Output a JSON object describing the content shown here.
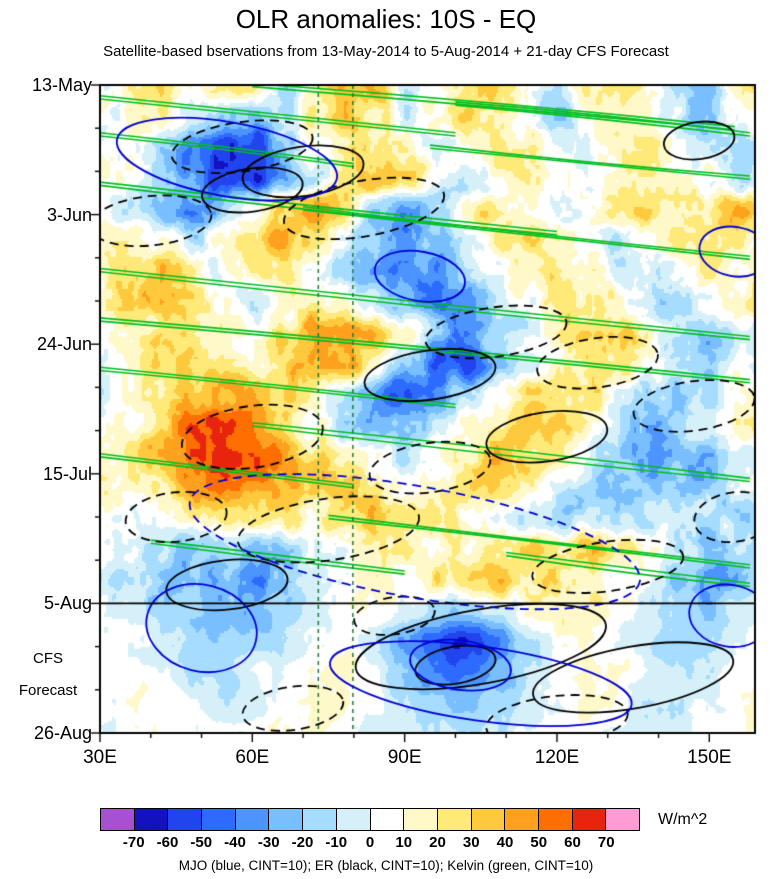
{
  "chart_data": {
    "type": "heatmap",
    "title": "OLR anomalies: 10S - EQ",
    "subtitle": "Satellite-based bservations from 13-May-2014 to 5-Aug-2014 + 21-day CFS Forecast",
    "units": "W/m^2",
    "legend": "MJO (blue, CINT=10); ER (black, CINT=10); Kelvin (green, CINT=10)",
    "x_axis": {
      "min": 30,
      "max": 159,
      "minor_step": 10,
      "ticks": [
        {
          "label": "30E",
          "lon": 30
        },
        {
          "label": "60E",
          "lon": 60
        },
        {
          "label": "90E",
          "lon": 90
        },
        {
          "label": "120E",
          "lon": 120
        },
        {
          "label": "150E",
          "lon": 150
        }
      ]
    },
    "y_axis": {
      "min_day": 0,
      "max_day": 105,
      "minor_step": 7,
      "ticks": [
        {
          "label": "13-May",
          "day": 0
        },
        {
          "label": "3-Jun",
          "day": 21
        },
        {
          "label": "24-Jun",
          "day": 42
        },
        {
          "label": "15-Jul",
          "day": 63
        },
        {
          "label": "5-Aug",
          "day": 84
        },
        {
          "label": "26-Aug",
          "day": 105
        }
      ]
    },
    "levels": [
      -70,
      -60,
      -50,
      -40,
      -30,
      -20,
      -10,
      0,
      10,
      20,
      30,
      40,
      50,
      60,
      70
    ],
    "colors": [
      "#A751D1",
      "#1212BE",
      "#2244EE",
      "#2D6BFF",
      "#4D94FF",
      "#79BFFF",
      "#A6DCFF",
      "#D6F0FA",
      "#FFFFFF",
      "#FFF8C9",
      "#FFE978",
      "#FFC93E",
      "#FFA01E",
      "#FF6E00",
      "#E8240F",
      "#FF9BD5"
    ],
    "colorbar_labels": [
      "-70",
      "-60",
      "-50",
      "-40",
      "-30",
      "-20",
      "-10",
      "0",
      "10",
      "20",
      "30",
      "40",
      "50",
      "60",
      "70"
    ],
    "grid": {
      "lons": [
        30,
        36,
        42,
        48,
        54,
        60,
        66,
        72,
        78,
        84,
        90,
        96,
        102,
        108,
        114,
        120,
        126,
        132,
        138,
        144,
        150,
        156
      ],
      "days": [
        0,
        5,
        10,
        15,
        20,
        25,
        30,
        35,
        40,
        45,
        50,
        55,
        60,
        65,
        70,
        75,
        80,
        85,
        90,
        95,
        100,
        105
      ],
      "values": [
        [
          10,
          15,
          25,
          5,
          30,
          35,
          -20,
          15,
          30,
          40,
          -15,
          10,
          25,
          30,
          10,
          -10,
          20,
          25,
          15,
          -5,
          -30,
          25
        ],
        [
          5,
          10,
          15,
          -10,
          -25,
          -30,
          -10,
          20,
          35,
          25,
          -5,
          15,
          30,
          20,
          5,
          -15,
          10,
          20,
          10,
          -10,
          -20,
          10
        ],
        [
          10,
          0,
          -15,
          -40,
          -60,
          -55,
          -25,
          5,
          25,
          30,
          10,
          -10,
          5,
          25,
          15,
          5,
          -5,
          15,
          25,
          10,
          -10,
          -15
        ],
        [
          15,
          10,
          -10,
          -35,
          -55,
          -60,
          -35,
          -10,
          20,
          35,
          30,
          5,
          -10,
          10,
          20,
          10,
          0,
          10,
          20,
          15,
          5,
          -10
        ],
        [
          5,
          -10,
          -20,
          -30,
          -20,
          10,
          35,
          45,
          25,
          -15,
          -30,
          -10,
          15,
          25,
          10,
          -5,
          5,
          20,
          30,
          20,
          25,
          35
        ],
        [
          10,
          20,
          10,
          -10,
          5,
          30,
          40,
          20,
          -5,
          -25,
          -35,
          -20,
          5,
          20,
          30,
          15,
          5,
          -10,
          5,
          25,
          30,
          20
        ],
        [
          15,
          25,
          30,
          15,
          0,
          15,
          25,
          5,
          -15,
          -30,
          -40,
          -35,
          -15,
          5,
          15,
          25,
          15,
          0,
          -10,
          10,
          20,
          10
        ],
        [
          20,
          30,
          35,
          25,
          10,
          -5,
          10,
          20,
          10,
          -10,
          -25,
          -40,
          -30,
          -10,
          10,
          20,
          25,
          10,
          -5,
          -15,
          5,
          15
        ],
        [
          10,
          15,
          20,
          30,
          20,
          10,
          25,
          40,
          50,
          35,
          10,
          -20,
          -35,
          -20,
          0,
          15,
          25,
          30,
          15,
          -5,
          -20,
          -10
        ],
        [
          5,
          10,
          25,
          35,
          25,
          15,
          30,
          45,
          40,
          15,
          -20,
          -45,
          -50,
          -25,
          -5,
          10,
          20,
          15,
          5,
          -10,
          -15,
          5
        ],
        [
          0,
          10,
          20,
          35,
          45,
          40,
          30,
          15,
          -10,
          -35,
          -55,
          -40,
          -15,
          10,
          25,
          30,
          20,
          5,
          -15,
          -25,
          -10,
          10
        ],
        [
          5,
          15,
          30,
          50,
          60,
          55,
          35,
          10,
          -15,
          -30,
          -25,
          -10,
          10,
          25,
          35,
          25,
          10,
          -10,
          -30,
          -20,
          0,
          15
        ],
        [
          10,
          20,
          35,
          55,
          65,
          60,
          45,
          30,
          20,
          5,
          -10,
          5,
          20,
          35,
          30,
          15,
          -5,
          -20,
          -35,
          -25,
          -30,
          -10
        ],
        [
          15,
          10,
          25,
          40,
          50,
          45,
          35,
          30,
          35,
          25,
          10,
          15,
          30,
          25,
          10,
          -5,
          -15,
          -25,
          -20,
          -15,
          -20,
          5
        ],
        [
          5,
          0,
          10,
          20,
          25,
          30,
          20,
          15,
          25,
          35,
          30,
          20,
          10,
          0,
          -10,
          -15,
          -5,
          -15,
          -10,
          0,
          -10,
          -15
        ],
        [
          0,
          -5,
          -15,
          -20,
          -10,
          -20,
          -15,
          0,
          10,
          20,
          15,
          5,
          15,
          25,
          30,
          25,
          30,
          20,
          5,
          -10,
          -20,
          -10
        ],
        [
          -5,
          -10,
          -20,
          -30,
          -25,
          -35,
          -25,
          -10,
          5,
          15,
          10,
          20,
          30,
          35,
          25,
          30,
          20,
          10,
          -5,
          -20,
          -30,
          -20
        ],
        [
          0,
          -5,
          -10,
          -20,
          -30,
          -25,
          -15,
          -5,
          5,
          10,
          -5,
          -15,
          -20,
          -10,
          10,
          20,
          15,
          5,
          -5,
          -15,
          -20,
          -10
        ],
        [
          5,
          0,
          -5,
          -15,
          -20,
          -15,
          -10,
          0,
          5,
          -10,
          -30,
          -50,
          -60,
          -40,
          -15,
          5,
          10,
          0,
          -10,
          -15,
          -10,
          0
        ],
        [
          10,
          5,
          0,
          -10,
          -15,
          -5,
          5,
          10,
          15,
          0,
          -20,
          -40,
          -45,
          -30,
          -10,
          5,
          15,
          10,
          0,
          -10,
          -5,
          5
        ],
        [
          5,
          10,
          5,
          0,
          -10,
          -5,
          5,
          15,
          10,
          5,
          -10,
          -20,
          -25,
          -15,
          -5,
          5,
          10,
          5,
          -5,
          -10,
          0,
          10
        ],
        [
          0,
          5,
          10,
          5,
          0,
          5,
          10,
          10,
          5,
          0,
          -5,
          -10,
          -15,
          -10,
          0,
          5,
          5,
          0,
          -5,
          0,
          5,
          10
        ]
      ]
    },
    "overlays": {
      "mjo_color": "#0000D2",
      "er_color": "#000000",
      "kelvin_color": "#00BE1E",
      "refline_color": "#1F7A33",
      "forecast_line_day": 84,
      "vlines_lon": [
        73,
        79.8
      ],
      "mjo_ellipses": [
        [
          55,
          12,
          22,
          6,
          10,
          "solid"
        ],
        [
          93,
          31,
          9,
          4,
          10,
          "solid"
        ],
        [
          155,
          27,
          7,
          4,
          10,
          "solid"
        ],
        [
          92,
          74,
          45,
          9,
          10,
          "dashed"
        ],
        [
          50,
          88,
          11,
          7,
          14,
          "solid"
        ],
        [
          105,
          97,
          30,
          6,
          8,
          "solid"
        ],
        [
          101,
          94,
          10,
          4,
          8,
          "solid"
        ],
        [
          154,
          86,
          8,
          5,
          10,
          "solid"
        ]
      ],
      "er_ellipses": [
        [
          70,
          14,
          12,
          4,
          -8,
          "solid"
        ],
        [
          60,
          17,
          10,
          3.5,
          -8,
          "solid"
        ],
        [
          95,
          47,
          13,
          4,
          -8,
          "solid"
        ],
        [
          118,
          57,
          12,
          4,
          -8,
          "solid"
        ],
        [
          55,
          81,
          12,
          4,
          -6,
          "solid"
        ],
        [
          105,
          91,
          25,
          6,
          -10,
          "solid"
        ],
        [
          135,
          96,
          20,
          5,
          -10,
          "solid"
        ],
        [
          148,
          9,
          7,
          3,
          -8,
          "solid"
        ],
        [
          100,
          94,
          8,
          3,
          -10,
          "solid"
        ],
        [
          58,
          10,
          14,
          4,
          -8,
          "dashed"
        ],
        [
          82,
          20,
          16,
          4.5,
          -10,
          "dashed"
        ],
        [
          40,
          22,
          12,
          4,
          -6,
          "dashed"
        ],
        [
          108,
          40,
          14,
          4,
          -8,
          "dashed"
        ],
        [
          128,
          45,
          12,
          4,
          -8,
          "dashed"
        ],
        [
          147,
          52,
          12,
          4,
          -8,
          "dashed"
        ],
        [
          60,
          57,
          14,
          5,
          -8,
          "dashed"
        ],
        [
          95,
          62,
          12,
          4,
          -8,
          "dashed"
        ],
        [
          75,
          72,
          18,
          5,
          -8,
          "dashed"
        ],
        [
          45,
          70,
          10,
          4,
          -6,
          "dashed"
        ],
        [
          130,
          78,
          15,
          4,
          -8,
          "dashed"
        ],
        [
          155,
          70,
          8,
          4,
          -8,
          "dashed"
        ],
        [
          88,
          86,
          8,
          3,
          -8,
          "dashed"
        ],
        [
          68,
          101,
          10,
          3.5,
          -8,
          "dashed"
        ],
        [
          120,
          103,
          14,
          4,
          -6,
          "dashed"
        ]
      ],
      "kelvin_lines": [
        [
          30,
          2,
          100,
          8
        ],
        [
          60,
          0,
          155,
          7
        ],
        [
          100,
          3,
          158,
          8
        ],
        [
          30,
          8,
          80,
          13
        ],
        [
          30,
          16,
          120,
          24
        ],
        [
          95,
          10,
          158,
          15
        ],
        [
          70,
          20,
          158,
          28
        ],
        [
          30,
          30,
          158,
          41
        ],
        [
          30,
          38,
          158,
          48
        ],
        [
          30,
          46,
          100,
          52
        ],
        [
          60,
          55,
          158,
          64
        ],
        [
          30,
          60,
          80,
          65
        ],
        [
          75,
          70,
          158,
          78
        ],
        [
          40,
          74,
          90,
          79
        ],
        [
          110,
          76,
          158,
          81
        ]
      ]
    },
    "texture": {
      "amp1": 10,
      "sx1": 16,
      "sy1": 26,
      "amp2": 6,
      "sx2": 6,
      "sy2": 8,
      "forecast_damp": 0.55
    }
  },
  "left_labels": {
    "line1": "CFS",
    "line2": "Forecast"
  }
}
